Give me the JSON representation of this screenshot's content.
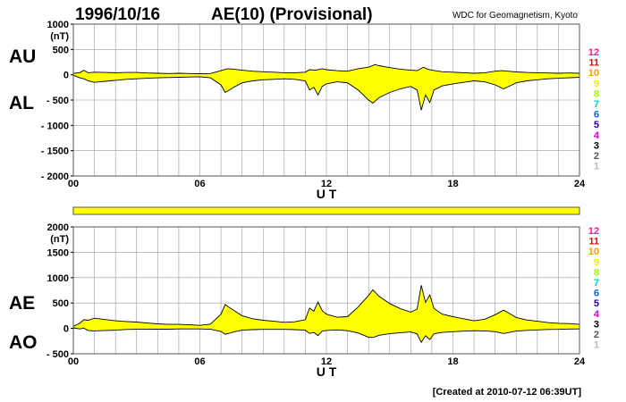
{
  "header": {
    "date": "1996/10/16",
    "title": "AE(10) (Provisional)",
    "source": "WDC for Geomagnetism, Kyoto"
  },
  "footer": {
    "created": "[Created at 2010-07-12 06:39UT]"
  },
  "colors": {
    "fill": "#ffff00",
    "grid": "#999999",
    "frame": "#555555",
    "trace": "#000000",
    "status_bar": "#ffff00"
  },
  "station_legend": [
    {
      "label": "12",
      "color": "#ff1493"
    },
    {
      "label": "11",
      "color": "#ee0000"
    },
    {
      "label": "10",
      "color": "#ff9900"
    },
    {
      "label": "9",
      "color": "#eeee00"
    },
    {
      "label": "8",
      "color": "#99ff00"
    },
    {
      "label": "7",
      "color": "#00cccc"
    },
    {
      "label": "6",
      "color": "#0066ff"
    },
    {
      "label": "5",
      "color": "#2200aa"
    },
    {
      "label": "4",
      "color": "#cc00cc"
    },
    {
      "label": "3",
      "color": "#000000"
    },
    {
      "label": "2",
      "color": "#555555"
    },
    {
      "label": "1",
      "color": "#bbbbbb"
    }
  ],
  "chart_data": [
    {
      "type": "area",
      "upper_label": "AU",
      "lower_label": "AL",
      "unit_label": "(nT)",
      "xlabel": "U T",
      "xlim": [
        0,
        24
      ],
      "ylim": [
        -2000,
        1000
      ],
      "yticks": [
        1000,
        500,
        0,
        -500,
        -1000,
        -1500,
        -2000
      ],
      "ytick_labels": [
        "1000",
        "500",
        "0",
        "- 500",
        "- 1000",
        "- 1500",
        "- 2000"
      ],
      "xticks": [
        0,
        6,
        12,
        18,
        24
      ],
      "xtick_labels": [
        "00",
        "06",
        "12",
        "18",
        "24"
      ],
      "grid": true,
      "upper_series": {
        "name": "AU",
        "points": [
          [
            0.0,
            30
          ],
          [
            0.3,
            40
          ],
          [
            0.5,
            90
          ],
          [
            0.7,
            40
          ],
          [
            1.0,
            50
          ],
          [
            1.5,
            45
          ],
          [
            2.0,
            40
          ],
          [
            2.5,
            45
          ],
          [
            3.0,
            45
          ],
          [
            3.5,
            35
          ],
          [
            4.0,
            30
          ],
          [
            4.5,
            25
          ],
          [
            5.0,
            30
          ],
          [
            5.5,
            25
          ],
          [
            6.0,
            20
          ],
          [
            6.5,
            25
          ],
          [
            7.0,
            80
          ],
          [
            7.3,
            120
          ],
          [
            7.6,
            110
          ],
          [
            8.0,
            90
          ],
          [
            8.5,
            70
          ],
          [
            9.0,
            60
          ],
          [
            9.5,
            50
          ],
          [
            10.0,
            40
          ],
          [
            10.5,
            40
          ],
          [
            11.0,
            50
          ],
          [
            11.2,
            100
          ],
          [
            11.5,
            90
          ],
          [
            11.8,
            120
          ],
          [
            12.0,
            100
          ],
          [
            12.5,
            80
          ],
          [
            13.0,
            70
          ],
          [
            13.5,
            120
          ],
          [
            14.0,
            150
          ],
          [
            14.3,
            200
          ],
          [
            14.5,
            180
          ],
          [
            15.0,
            140
          ],
          [
            15.5,
            110
          ],
          [
            16.0,
            90
          ],
          [
            16.3,
            80
          ],
          [
            16.6,
            150
          ],
          [
            16.8,
            110
          ],
          [
            17.0,
            90
          ],
          [
            17.5,
            60
          ],
          [
            18.0,
            50
          ],
          [
            18.5,
            40
          ],
          [
            19.0,
            30
          ],
          [
            19.5,
            40
          ],
          [
            20.0,
            70
          ],
          [
            20.3,
            80
          ],
          [
            20.6,
            70
          ],
          [
            21.0,
            55
          ],
          [
            21.5,
            45
          ],
          [
            22.0,
            40
          ],
          [
            22.5,
            35
          ],
          [
            23.0,
            30
          ],
          [
            23.5,
            35
          ],
          [
            24.0,
            30
          ]
        ]
      },
      "lower_series": {
        "name": "AL",
        "points": [
          [
            0.0,
            -10
          ],
          [
            0.3,
            -60
          ],
          [
            0.5,
            -80
          ],
          [
            0.7,
            -120
          ],
          [
            1.0,
            -150
          ],
          [
            1.5,
            -130
          ],
          [
            2.0,
            -110
          ],
          [
            2.5,
            -90
          ],
          [
            3.0,
            -80
          ],
          [
            3.5,
            -70
          ],
          [
            4.0,
            -60
          ],
          [
            4.5,
            -55
          ],
          [
            5.0,
            -50
          ],
          [
            5.5,
            -45
          ],
          [
            6.0,
            -40
          ],
          [
            6.5,
            -60
          ],
          [
            7.0,
            -200
          ],
          [
            7.2,
            -350
          ],
          [
            7.4,
            -300
          ],
          [
            7.6,
            -250
          ],
          [
            8.0,
            -160
          ],
          [
            8.5,
            -120
          ],
          [
            9.0,
            -100
          ],
          [
            9.5,
            -90
          ],
          [
            10.0,
            -80
          ],
          [
            10.5,
            -90
          ],
          [
            11.0,
            -120
          ],
          [
            11.2,
            -300
          ],
          [
            11.4,
            -250
          ],
          [
            11.6,
            -400
          ],
          [
            11.8,
            -230
          ],
          [
            12.0,
            -180
          ],
          [
            12.5,
            -140
          ],
          [
            13.0,
            -160
          ],
          [
            13.5,
            -300
          ],
          [
            14.0,
            -500
          ],
          [
            14.2,
            -560
          ],
          [
            14.5,
            -450
          ],
          [
            15.0,
            -350
          ],
          [
            15.5,
            -280
          ],
          [
            16.0,
            -230
          ],
          [
            16.3,
            -300
          ],
          [
            16.5,
            -700
          ],
          [
            16.7,
            -400
          ],
          [
            16.9,
            -550
          ],
          [
            17.1,
            -300
          ],
          [
            17.5,
            -220
          ],
          [
            18.0,
            -180
          ],
          [
            18.5,
            -150
          ],
          [
            19.0,
            -120
          ],
          [
            19.5,
            -140
          ],
          [
            20.0,
            -200
          ],
          [
            20.4,
            -280
          ],
          [
            20.7,
            -220
          ],
          [
            21.0,
            -160
          ],
          [
            21.5,
            -120
          ],
          [
            22.0,
            -100
          ],
          [
            22.5,
            -80
          ],
          [
            23.0,
            -70
          ],
          [
            23.5,
            -60
          ],
          [
            24.0,
            -50
          ]
        ]
      }
    },
    {
      "type": "area",
      "upper_label": "AE",
      "lower_label": "AO",
      "unit_label": "(nT)",
      "xlabel": "U T",
      "xlim": [
        0,
        24
      ],
      "ylim": [
        -500,
        2000
      ],
      "yticks": [
        2000,
        1500,
        1000,
        500,
        0,
        -500
      ],
      "ytick_labels": [
        "2000",
        "1500",
        "1000",
        "500",
        "0",
        "- 500"
      ],
      "xticks": [
        0,
        6,
        12,
        18,
        24
      ],
      "xtick_labels": [
        "00",
        "06",
        "12",
        "18",
        "24"
      ],
      "grid": true,
      "upper_series": {
        "name": "AE",
        "points": [
          [
            0.0,
            40
          ],
          [
            0.3,
            100
          ],
          [
            0.5,
            170
          ],
          [
            0.7,
            160
          ],
          [
            1.0,
            200
          ],
          [
            1.5,
            175
          ],
          [
            2.0,
            150
          ],
          [
            2.5,
            135
          ],
          [
            3.0,
            125
          ],
          [
            3.5,
            105
          ],
          [
            4.0,
            90
          ],
          [
            4.5,
            80
          ],
          [
            5.0,
            80
          ],
          [
            5.5,
            70
          ],
          [
            6.0,
            60
          ],
          [
            6.5,
            85
          ],
          [
            7.0,
            280
          ],
          [
            7.2,
            470
          ],
          [
            7.4,
            410
          ],
          [
            7.6,
            360
          ],
          [
            8.0,
            250
          ],
          [
            8.5,
            190
          ],
          [
            9.0,
            160
          ],
          [
            9.5,
            140
          ],
          [
            10.0,
            120
          ],
          [
            10.5,
            130
          ],
          [
            11.0,
            170
          ],
          [
            11.2,
            400
          ],
          [
            11.4,
            340
          ],
          [
            11.6,
            520
          ],
          [
            11.8,
            350
          ],
          [
            12.0,
            280
          ],
          [
            12.5,
            220
          ],
          [
            13.0,
            230
          ],
          [
            13.5,
            420
          ],
          [
            14.0,
            650
          ],
          [
            14.2,
            760
          ],
          [
            14.5,
            630
          ],
          [
            15.0,
            490
          ],
          [
            15.5,
            390
          ],
          [
            16.0,
            320
          ],
          [
            16.3,
            380
          ],
          [
            16.5,
            850
          ],
          [
            16.7,
            510
          ],
          [
            16.9,
            660
          ],
          [
            17.1,
            390
          ],
          [
            17.5,
            280
          ],
          [
            18.0,
            230
          ],
          [
            18.5,
            190
          ],
          [
            19.0,
            150
          ],
          [
            19.5,
            180
          ],
          [
            20.0,
            270
          ],
          [
            20.4,
            360
          ],
          [
            20.7,
            290
          ],
          [
            21.0,
            215
          ],
          [
            21.5,
            165
          ],
          [
            22.0,
            140
          ],
          [
            22.5,
            115
          ],
          [
            23.0,
            100
          ],
          [
            23.5,
            95
          ],
          [
            24.0,
            80
          ]
        ]
      },
      "lower_series": {
        "name": "AO",
        "points": [
          [
            0.0,
            10
          ],
          [
            0.3,
            -10
          ],
          [
            0.5,
            5
          ],
          [
            0.7,
            -40
          ],
          [
            1.0,
            -50
          ],
          [
            1.5,
            -40
          ],
          [
            2.0,
            -35
          ],
          [
            2.5,
            -22
          ],
          [
            3.0,
            -18
          ],
          [
            3.5,
            -18
          ],
          [
            4.0,
            -15
          ],
          [
            4.5,
            -15
          ],
          [
            5.0,
            -10
          ],
          [
            5.5,
            -10
          ],
          [
            6.0,
            -10
          ],
          [
            6.5,
            -18
          ],
          [
            7.0,
            -60
          ],
          [
            7.2,
            -115
          ],
          [
            7.4,
            -95
          ],
          [
            7.6,
            -70
          ],
          [
            8.0,
            -35
          ],
          [
            8.5,
            -25
          ],
          [
            9.0,
            -20
          ],
          [
            9.5,
            -20
          ],
          [
            10.0,
            -20
          ],
          [
            10.5,
            -25
          ],
          [
            11.0,
            -35
          ],
          [
            11.2,
            -100
          ],
          [
            11.4,
            -80
          ],
          [
            11.6,
            -140
          ],
          [
            11.8,
            -55
          ],
          [
            12.0,
            -40
          ],
          [
            12.5,
            -30
          ],
          [
            13.0,
            -45
          ],
          [
            13.5,
            -90
          ],
          [
            14.0,
            -175
          ],
          [
            14.2,
            -180
          ],
          [
            14.5,
            -135
          ],
          [
            15.0,
            -105
          ],
          [
            15.5,
            -85
          ],
          [
            16.0,
            -70
          ],
          [
            16.3,
            -110
          ],
          [
            16.5,
            -275
          ],
          [
            16.7,
            -145
          ],
          [
            16.9,
            -220
          ],
          [
            17.1,
            -105
          ],
          [
            17.5,
            -80
          ],
          [
            18.0,
            -65
          ],
          [
            18.5,
            -55
          ],
          [
            19.0,
            -45
          ],
          [
            19.5,
            -50
          ],
          [
            20.0,
            -65
          ],
          [
            20.4,
            -100
          ],
          [
            20.7,
            -75
          ],
          [
            21.0,
            -52
          ],
          [
            21.5,
            -38
          ],
          [
            22.0,
            -30
          ],
          [
            22.5,
            -22
          ],
          [
            23.0,
            -20
          ],
          [
            23.5,
            -12
          ],
          [
            24.0,
            -10
          ]
        ]
      }
    }
  ]
}
